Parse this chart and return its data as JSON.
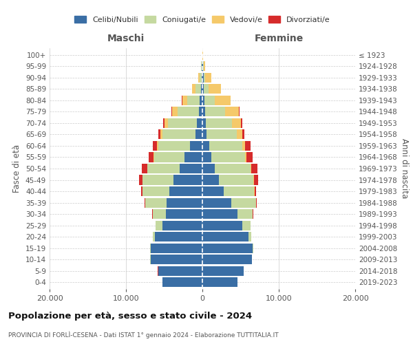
{
  "age_groups": [
    "0-4",
    "5-9",
    "10-14",
    "15-19",
    "20-24",
    "25-29",
    "30-34",
    "35-39",
    "40-44",
    "45-49",
    "50-54",
    "55-59",
    "60-64",
    "65-69",
    "70-74",
    "75-79",
    "80-84",
    "85-89",
    "90-94",
    "95-99",
    "100+"
  ],
  "birth_years": [
    "2019-2023",
    "2014-2018",
    "2009-2013",
    "2004-2008",
    "1999-2003",
    "1994-1998",
    "1989-1993",
    "1984-1988",
    "1979-1983",
    "1974-1978",
    "1969-1973",
    "1964-1968",
    "1959-1963",
    "1954-1958",
    "1949-1953",
    "1944-1948",
    "1939-1943",
    "1934-1938",
    "1929-1933",
    "1924-1928",
    "≤ 1923"
  ],
  "colors": {
    "celibi": "#3a6ea5",
    "coniugati": "#c5d9a0",
    "vedovi": "#f5c96a",
    "divorziati": "#d62b2b"
  },
  "maschi": {
    "celibi": [
      5200,
      5800,
      6800,
      6800,
      6200,
      5200,
      4800,
      4700,
      4300,
      3800,
      3000,
      2300,
      1600,
      900,
      700,
      450,
      350,
      200,
      120,
      80,
      20
    ],
    "coniugati": [
      5,
      5,
      10,
      50,
      300,
      900,
      1700,
      2800,
      3500,
      4000,
      4200,
      4000,
      4200,
      4300,
      3800,
      2800,
      1600,
      700,
      250,
      80,
      10
    ],
    "vedovi": [
      5,
      5,
      5,
      5,
      5,
      5,
      5,
      5,
      10,
      20,
      40,
      60,
      130,
      300,
      500,
      700,
      700,
      450,
      180,
      30,
      5
    ],
    "divorziati": [
      5,
      5,
      5,
      5,
      10,
      30,
      50,
      100,
      200,
      450,
      700,
      700,
      550,
      250,
      150,
      100,
      50,
      20,
      10,
      5,
      2
    ]
  },
  "femmine": {
    "celibi": [
      4600,
      5400,
      6500,
      6600,
      6000,
      5200,
      4600,
      3800,
      2800,
      2200,
      1600,
      1200,
      900,
      500,
      450,
      350,
      250,
      200,
      180,
      100,
      30
    ],
    "coniugati": [
      5,
      5,
      15,
      80,
      400,
      1100,
      2000,
      3200,
      4000,
      4500,
      4700,
      4400,
      4300,
      4000,
      3400,
      2600,
      1400,
      600,
      200,
      50,
      5
    ],
    "vedovi": [
      5,
      5,
      5,
      5,
      5,
      5,
      5,
      5,
      15,
      40,
      80,
      150,
      350,
      700,
      1200,
      1800,
      2000,
      1600,
      800,
      200,
      30
    ],
    "divorziati": [
      5,
      5,
      5,
      5,
      10,
      20,
      50,
      100,
      200,
      600,
      800,
      800,
      750,
      300,
      200,
      120,
      80,
      30,
      10,
      5,
      2
    ]
  },
  "title": "Popolazione per età, sesso e stato civile - 2024",
  "subtitle": "PROVINCIA DI FORLÌ-CESENA - Dati ISTAT 1° gennaio 2024 - Elaborazione TUTTITALIA.IT",
  "xlabel_left": "Maschi",
  "xlabel_right": "Femmine",
  "ylabel_left": "Fasce di età",
  "ylabel_right": "Anni di nascita",
  "xlim": 20000,
  "legend_labels": [
    "Celibi/Nubili",
    "Coniugati/e",
    "Vedovi/e",
    "Divorziati/e"
  ],
  "background_color": "#ffffff"
}
